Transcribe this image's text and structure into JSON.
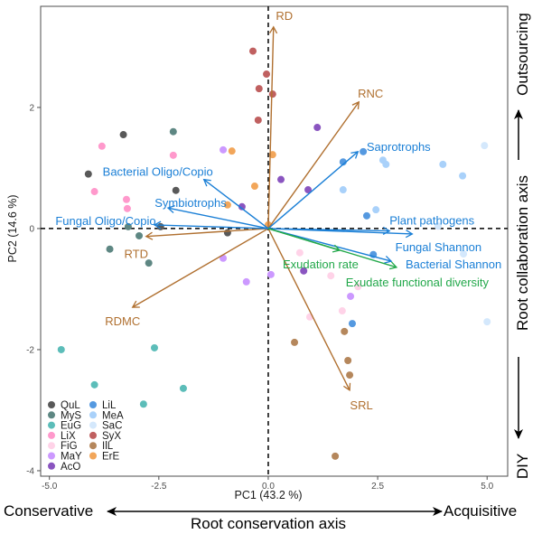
{
  "chart_data": {
    "type": "scatter",
    "subtype": "pca-biplot",
    "xlabel": "PC1 (43.2 %)",
    "ylabel": "PC2 (14.6 %)",
    "xlim": [
      -5.2,
      5.47
    ],
    "ylim": [
      -4.09,
      3.67
    ],
    "x_ticks": [
      -5.0,
      -2.5,
      0.0,
      2.5,
      5.0
    ],
    "x_tick_labels": [
      "-5.0",
      "-2.5",
      "0.0",
      "2.5",
      "5.0"
    ],
    "y_ticks": [
      2,
      0,
      -2,
      -4
    ],
    "y_tick_labels": [
      "2",
      "0",
      "-2",
      "-4"
    ],
    "grid": false,
    "zero_lines": "dashed",
    "legend_position": "bottom-left",
    "annotations": {
      "x_left": "Conservative",
      "x_right": "Acquisitive",
      "x_axis_title": "Root conservation axis",
      "y_top": "Outsourcing",
      "y_bottom": "DIY",
      "y_axis_title": "Root collaboration axis"
    },
    "series": [
      {
        "name": "QuL",
        "color": "#595959",
        "points": [
          [
            -3.31,
            1.55
          ],
          [
            -4.11,
            0.9
          ],
          [
            -2.11,
            0.63
          ],
          [
            -0.93,
            -0.07
          ],
          [
            -2.46,
            0.03
          ]
        ]
      },
      {
        "name": "MyS",
        "color": "#5e8783",
        "points": [
          [
            -2.17,
            1.6
          ],
          [
            -3.2,
            0.03
          ],
          [
            -2.95,
            -0.12
          ],
          [
            -3.62,
            -0.34
          ],
          [
            -2.73,
            -0.57
          ]
        ]
      },
      {
        "name": "EuG",
        "color": "#5cbdb9",
        "points": [
          [
            -4.73,
            -2.0
          ],
          [
            -2.6,
            -1.97
          ],
          [
            -3.97,
            -2.58
          ],
          [
            -1.94,
            -2.64
          ],
          [
            -2.85,
            -2.9
          ]
        ]
      },
      {
        "name": "LiX",
        "color": "#ff99cc",
        "points": [
          [
            -3.8,
            1.36
          ],
          [
            -2.17,
            1.21
          ],
          [
            -3.97,
            0.61
          ],
          [
            -3.24,
            0.48
          ],
          [
            -3.22,
            0.33
          ]
        ]
      },
      {
        "name": "FiG",
        "color": "#ffd3e8",
        "points": [
          [
            0.72,
            -0.4
          ],
          [
            1.43,
            -0.78
          ],
          [
            2.05,
            -0.96
          ],
          [
            1.69,
            -1.36
          ],
          [
            0.95,
            -1.46
          ]
        ]
      },
      {
        "name": "MaY",
        "color": "#cc99ff",
        "points": [
          [
            -1.03,
            1.3
          ],
          [
            -1.03,
            -0.49
          ],
          [
            -0.5,
            -0.88
          ],
          [
            0.06,
            -0.76
          ],
          [
            1.88,
            -1.12
          ]
        ]
      },
      {
        "name": "AcO",
        "color": "#8a55c0",
        "points": [
          [
            -0.6,
            0.36
          ],
          [
            1.12,
            1.67
          ],
          [
            0.29,
            0.81
          ],
          [
            0.91,
            0.64
          ],
          [
            0.81,
            -0.7
          ]
        ]
      },
      {
        "name": "LiL",
        "color": "#5599e0",
        "points": [
          [
            2.17,
            1.27
          ],
          [
            1.71,
            1.1
          ],
          [
            2.25,
            0.21
          ],
          [
            2.4,
            -0.43
          ],
          [
            1.92,
            -1.57
          ]
        ]
      },
      {
        "name": "MeA",
        "color": "#a9d1fa",
        "points": [
          [
            2.62,
            1.13
          ],
          [
            2.69,
            1.06
          ],
          [
            1.71,
            0.64
          ],
          [
            2.46,
            0.31
          ],
          [
            3.99,
            1.06
          ],
          [
            4.44,
            0.87
          ]
        ]
      },
      {
        "name": "SaC",
        "color": "#d4e8fc",
        "points": [
          [
            4.94,
            1.37
          ],
          [
            3.88,
            0.04
          ],
          [
            4.46,
            -0.42
          ],
          [
            5.0,
            -1.54
          ]
        ]
      },
      {
        "name": "SyX",
        "color": "#c06060",
        "points": [
          [
            -0.35,
            2.93
          ],
          [
            -0.04,
            2.55
          ],
          [
            -0.21,
            2.31
          ],
          [
            0.1,
            2.22
          ],
          [
            -0.23,
            1.79
          ]
        ]
      },
      {
        "name": "IlL",
        "color": "#b5875c",
        "points": [
          [
            0.6,
            -1.88
          ],
          [
            1.74,
            -1.7
          ],
          [
            1.82,
            -2.18
          ],
          [
            1.86,
            -2.42
          ],
          [
            1.53,
            -3.76
          ]
        ]
      },
      {
        "name": "ErE",
        "color": "#f2a65a",
        "points": [
          [
            -0.83,
            1.28
          ],
          [
            0.1,
            1.22
          ],
          [
            -0.31,
            0.7
          ],
          [
            -0.93,
            0.39
          ],
          [
            0.0,
            0.06
          ]
        ]
      }
    ],
    "loadings": [
      {
        "label": "RD",
        "group": "root-trait",
        "color": "#b07030",
        "x": 0.12,
        "y": 3.33
      },
      {
        "label": "RNC",
        "group": "root-trait",
        "color": "#b07030",
        "x": 2.07,
        "y": 2.09
      },
      {
        "label": "RTD",
        "group": "root-trait",
        "color": "#b07030",
        "x": -2.79,
        "y": -0.13
      },
      {
        "label": "RDMC",
        "group": "root-trait",
        "color": "#b07030",
        "x": -3.1,
        "y": -1.3
      },
      {
        "label": "SRL",
        "group": "root-trait",
        "color": "#b07030",
        "x": 1.86,
        "y": -2.67
      },
      {
        "label": "Saprotrophs",
        "group": "microbial",
        "color": "#1a7fd6",
        "x": 2.05,
        "y": 1.27
      },
      {
        "label": "Bacterial Oligo/Copio",
        "group": "microbial",
        "color": "#1a7fd6",
        "x": -1.47,
        "y": 0.81
      },
      {
        "label": "Symbiotrophs",
        "group": "microbial",
        "color": "#1a7fd6",
        "x": -2.29,
        "y": 0.34
      },
      {
        "label": "Fungal Oligo/Copio",
        "group": "microbial",
        "color": "#1a7fd6",
        "x": -2.6,
        "y": 0.06
      },
      {
        "label": "Plant pathogens",
        "group": "microbial",
        "color": "#1a7fd6",
        "x": 2.77,
        "y": -0.04
      },
      {
        "label": "Fungal Shannon",
        "group": "microbial",
        "color": "#1a7fd6",
        "x": 3.29,
        "y": -0.09
      },
      {
        "label": "Bacterial Shannon",
        "group": "microbial",
        "color": "#1a7fd6",
        "x": 2.81,
        "y": -0.54
      },
      {
        "label": "Exudation rate",
        "group": "exudate",
        "color": "#22a84a",
        "x": 1.63,
        "y": -0.36
      },
      {
        "label": "Exudate functional diversity",
        "group": "exudate",
        "color": "#22a84a",
        "x": 2.93,
        "y": -0.64
      }
    ]
  }
}
